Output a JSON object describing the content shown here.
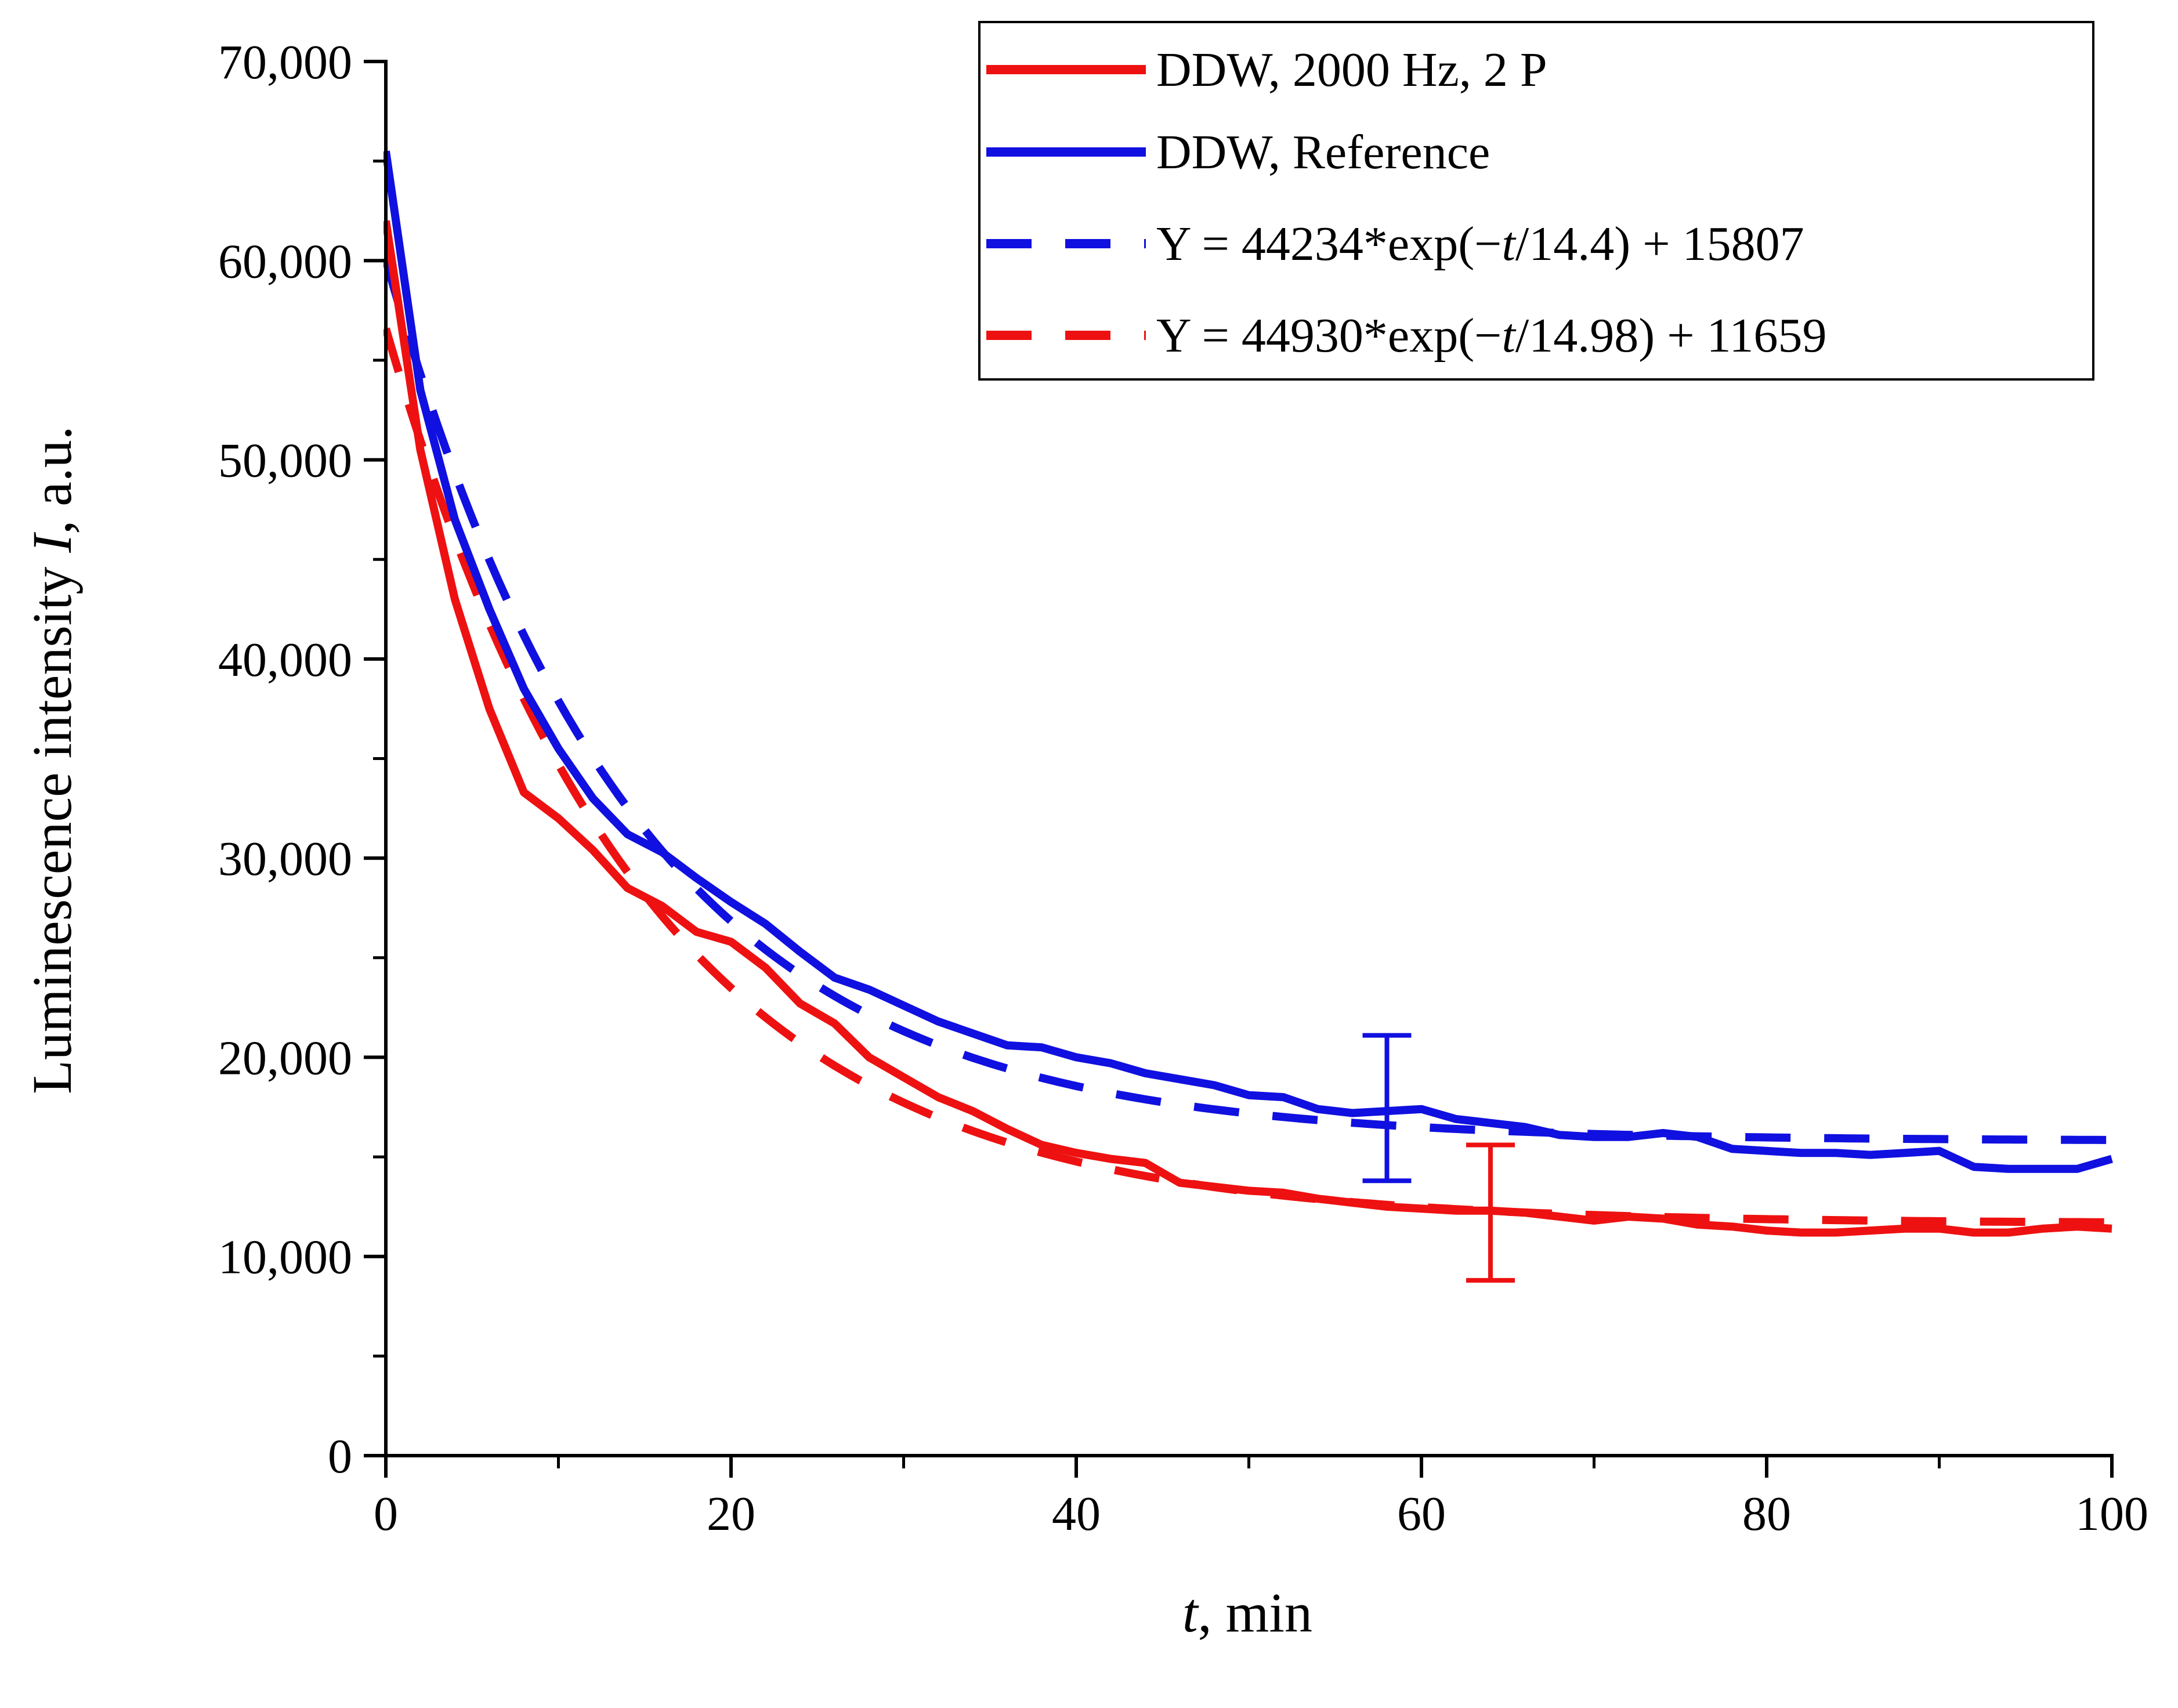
{
  "colors": {
    "red": "#ee1111",
    "blue": "#1010e0",
    "axis": "#000000"
  },
  "chart_data": {
    "type": "line",
    "xlabel_italic": "t",
    "xlabel_rest": ", min",
    "ylabel_main": "Luminescence intensity ",
    "ylabel_italic": "I",
    "ylabel_rest": ", a.u.",
    "xlim": [
      0,
      100
    ],
    "ylim": [
      0,
      70000
    ],
    "x_ticks": [
      0,
      20,
      40,
      60,
      80,
      100
    ],
    "x_tick_labels": [
      "0",
      "20",
      "40",
      "60",
      "80",
      "100"
    ],
    "x_minor_ticks": [
      10,
      30,
      50,
      70,
      90
    ],
    "y_ticks": [
      0,
      10000,
      20000,
      30000,
      40000,
      50000,
      60000,
      70000
    ],
    "y_tick_labels": [
      "0",
      "10,000",
      "20,000",
      "30,000",
      "40,000",
      "50,000",
      "60,000",
      "70,000"
    ],
    "y_minor_ticks": [
      5000,
      15000,
      25000,
      35000,
      45000,
      55000,
      65000
    ],
    "legend_position": "top-right",
    "series": [
      {
        "name": "DDW, 2000 Hz, 2 P",
        "style": "solid",
        "color": "red",
        "x": [
          0,
          2,
          4,
          6,
          8,
          10,
          12,
          14,
          16,
          18,
          20,
          22,
          24,
          26,
          28,
          30,
          32,
          34,
          36,
          38,
          40,
          42,
          44,
          46,
          48,
          50,
          52,
          54,
          56,
          58,
          60,
          62,
          64,
          66,
          68,
          70,
          72,
          74,
          76,
          78,
          80,
          82,
          84,
          86,
          88,
          90,
          92,
          94,
          96,
          98,
          100
        ],
        "y": [
          62000,
          50500,
          43000,
          37500,
          33300,
          32000,
          30400,
          28500,
          27600,
          26300,
          25800,
          24500,
          22700,
          21700,
          20000,
          19000,
          18000,
          17300,
          16400,
          15600,
          15200,
          14900,
          14700,
          13700,
          13500,
          13300,
          13200,
          12900,
          12700,
          12500,
          12400,
          12300,
          12300,
          12200,
          12000,
          11800,
          12000,
          11900,
          11600,
          11500,
          11300,
          11200,
          11200,
          11300,
          11400,
          11400,
          11200,
          11200,
          11400,
          11500,
          11400
        ]
      },
      {
        "name": "DDW, Reference",
        "style": "solid",
        "color": "blue",
        "x": [
          0,
          2,
          4,
          6,
          8,
          10,
          12,
          14,
          16,
          18,
          20,
          22,
          24,
          26,
          28,
          30,
          32,
          34,
          36,
          38,
          40,
          42,
          44,
          46,
          48,
          50,
          52,
          54,
          56,
          58,
          60,
          62,
          64,
          66,
          68,
          70,
          72,
          74,
          76,
          78,
          80,
          82,
          84,
          86,
          88,
          90,
          92,
          94,
          96,
          98,
          100
        ],
        "y": [
          65500,
          53500,
          47000,
          42500,
          38500,
          35500,
          33000,
          31200,
          30300,
          29000,
          27800,
          26700,
          25300,
          24000,
          23400,
          22600,
          21800,
          21200,
          20600,
          20500,
          20000,
          19700,
          19200,
          18900,
          18600,
          18100,
          18000,
          17400,
          17200,
          17300,
          17400,
          16900,
          16700,
          16500,
          16100,
          16000,
          16000,
          16200,
          16000,
          15400,
          15300,
          15200,
          15200,
          15100,
          15200,
          15300,
          14500,
          14400,
          14400,
          14400,
          14900
        ]
      },
      {
        "name": "Y = 44234*exp(−t/14.4) + 15807",
        "style": "dashed",
        "color": "blue",
        "amplitude": 44234,
        "tau": 14.4,
        "offset": 15807,
        "x_range": [
          0,
          100
        ]
      },
      {
        "name": "Y = 44930*exp(−t/14.98) + 11659",
        "style": "dashed",
        "color": "red",
        "amplitude": 44930,
        "tau": 14.98,
        "offset": 11659,
        "x_range": [
          0,
          100
        ]
      }
    ],
    "error_bars": [
      {
        "series": "DDW, Reference",
        "color": "blue",
        "x": 58,
        "y_low": 13800,
        "y_high": 21100
      },
      {
        "series": "DDW, 2000 Hz, 2 P",
        "color": "red",
        "x": 64,
        "y_low": 8800,
        "y_high": 15600
      }
    ],
    "legend": [
      {
        "label": "DDW, 2000 Hz, 2 P",
        "style": "solid",
        "color": "red"
      },
      {
        "label": "DDW, Reference",
        "style": "solid",
        "color": "blue"
      },
      {
        "label_prefix": "Y = 44234*exp(−",
        "label_italic": "t",
        "label_suffix": "/14.4) + 15807",
        "style": "dashed",
        "color": "blue"
      },
      {
        "label_prefix": "Y = 44930*exp(−",
        "label_italic": "t",
        "label_suffix": "/14.98) + 11659",
        "style": "dashed",
        "color": "red"
      }
    ]
  }
}
